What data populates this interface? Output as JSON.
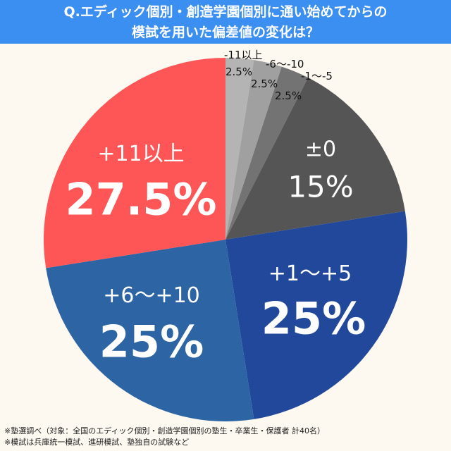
{
  "title_lines": [
    "Q.エディック個別・創造学園個別に通い始めてからの",
    "模試を用いた偏差値の変化は？"
  ],
  "chart_data": {
    "type": "pie",
    "title": "Q.エディック個別・創造学園個別に通い始めてからの模試を用いた偏差値の変化は？",
    "categories": [
      "-11以上",
      "-6〜-10",
      "-1〜-5",
      "±0",
      "+1〜+5",
      "+6〜+10",
      "+11以上"
    ],
    "values": [
      2.5,
      2.5,
      2.5,
      15,
      25,
      25,
      27.5
    ],
    "labels": [
      "2.5%",
      "2.5%",
      "2.5%",
      "15%",
      "25%",
      "25%",
      "27.5%"
    ],
    "colors": [
      "#b4b4b4",
      "#a0a0a0",
      "#737373",
      "#555555",
      "#21489a",
      "#2c64a4",
      "#fe5656"
    ],
    "start": "top",
    "direction": "clockwise"
  },
  "footnotes": [
    "※塾選調べ（対象：全国のエディック個別・創造学園個別の塾生・卒業生・保護者 計40名）",
    "※模試は兵庫統一模試、進研模試、塾独自の試験など"
  ]
}
